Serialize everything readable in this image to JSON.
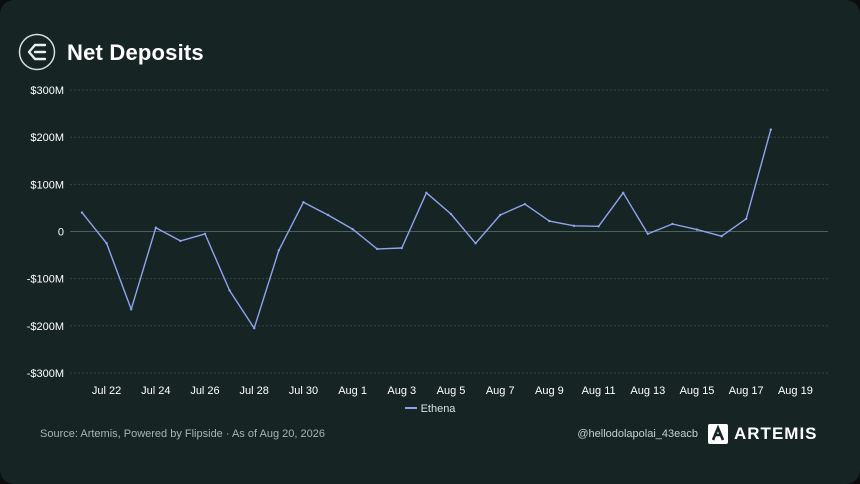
{
  "header": {
    "title": "Net Deposits",
    "logo_icon": "artemis-e-logo-icon"
  },
  "chart_data": {
    "type": "line",
    "title": "Net Deposits",
    "xlabel": "",
    "ylabel": "",
    "ylim": [
      -300,
      300
    ],
    "y_ticks": [
      {
        "value": 300,
        "label": "$300M"
      },
      {
        "value": 200,
        "label": "$200M"
      },
      {
        "value": 100,
        "label": "$100M"
      },
      {
        "value": 0,
        "label": "0"
      },
      {
        "value": -100,
        "label": "-$100M"
      },
      {
        "value": -200,
        "label": "-$200M"
      },
      {
        "value": -300,
        "label": "-$300M"
      }
    ],
    "x_tick_labels": [
      "Jul 22",
      "Jul 24",
      "Jul 26",
      "Jul 28",
      "Jul 30",
      "Aug 1",
      "Aug 3",
      "Aug 5",
      "Aug 7",
      "Aug 9",
      "Aug 11",
      "Aug 13",
      "Aug 15",
      "Aug 17",
      "Aug 19"
    ],
    "grid": true,
    "legend_position": "bottom-center",
    "x": [
      "Jul 21",
      "Jul 22",
      "Jul 23",
      "Jul 24",
      "Jul 25",
      "Jul 26",
      "Jul 27",
      "Jul 28",
      "Jul 29",
      "Jul 30",
      "Jul 31",
      "Aug 1",
      "Aug 2",
      "Aug 3",
      "Aug 4",
      "Aug 5",
      "Aug 6",
      "Aug 7",
      "Aug 8",
      "Aug 9",
      "Aug 10",
      "Aug 11",
      "Aug 12",
      "Aug 13",
      "Aug 14",
      "Aug 15",
      "Aug 16",
      "Aug 17",
      "Aug 18"
    ],
    "series": [
      {
        "name": "Ethena",
        "color": "#8fa4ee",
        "values": [
          40,
          -25,
          -165,
          8,
          -20,
          -5,
          -125,
          -205,
          -40,
          62,
          35,
          5,
          -37,
          -35,
          82,
          37,
          -25,
          35,
          58,
          22,
          12,
          11,
          82,
          -5,
          16,
          4,
          -10,
          27,
          216
        ]
      }
    ]
  },
  "legend": {
    "items": [
      {
        "label": "Ethena",
        "color": "#8fa4ee"
      }
    ]
  },
  "footer": {
    "source": "Source: Artemis, Powered by Flipside · As of Aug 20, 2026",
    "handle": "@hellodolapolai_43eacb",
    "brand": "ARTEMIS",
    "brand_icon": "artemis-a-logo-icon"
  },
  "colors": {
    "background": "#162424",
    "line": "#8fa4ee",
    "grid": "#3a4a4a",
    "text": "#ffffff"
  }
}
